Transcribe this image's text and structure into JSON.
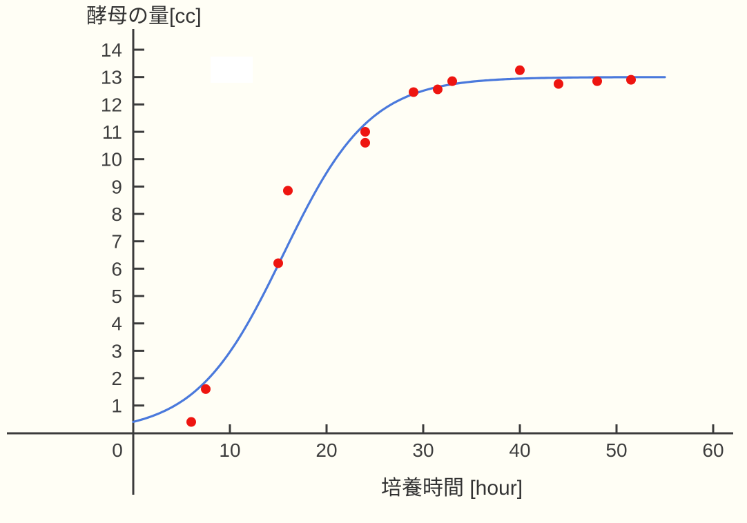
{
  "chart_data": {
    "type": "scatter",
    "title": "酵母の量[cc]",
    "xlabel": "培養時間 [hour]",
    "ylabel": "酵母の量[cc]",
    "x_ticks": [
      0,
      10,
      20,
      30,
      40,
      50,
      60
    ],
    "y_ticks": [
      1,
      2,
      3,
      4,
      5,
      6,
      7,
      8,
      9,
      10,
      11,
      12,
      13,
      14
    ],
    "xlim": [
      0,
      62
    ],
    "ylim": [
      0,
      14.7
    ],
    "grid": false,
    "legend": "none",
    "points": [
      {
        "x": 6,
        "y": 0.4
      },
      {
        "x": 7.5,
        "y": 1.6
      },
      {
        "x": 15,
        "y": 6.2
      },
      {
        "x": 16,
        "y": 8.85
      },
      {
        "x": 24,
        "y": 10.6
      },
      {
        "x": 24,
        "y": 11.0
      },
      {
        "x": 29,
        "y": 12.45
      },
      {
        "x": 31.5,
        "y": 12.55
      },
      {
        "x": 33,
        "y": 12.85
      },
      {
        "x": 40,
        "y": 13.25
      },
      {
        "x": 44,
        "y": 12.75
      },
      {
        "x": 48,
        "y": 12.85
      },
      {
        "x": 51.5,
        "y": 12.9
      }
    ],
    "fit_curve": {
      "type": "logistic",
      "K": 13,
      "r": 0.222,
      "t0": 15.5,
      "t_range": [
        0,
        55
      ]
    },
    "colors": {
      "curve_blue": "#4a79dc",
      "point_red": "#ee1510",
      "axis": "#3b3b3b",
      "background": "#fffef5",
      "whiteout": "#ffffff"
    }
  }
}
